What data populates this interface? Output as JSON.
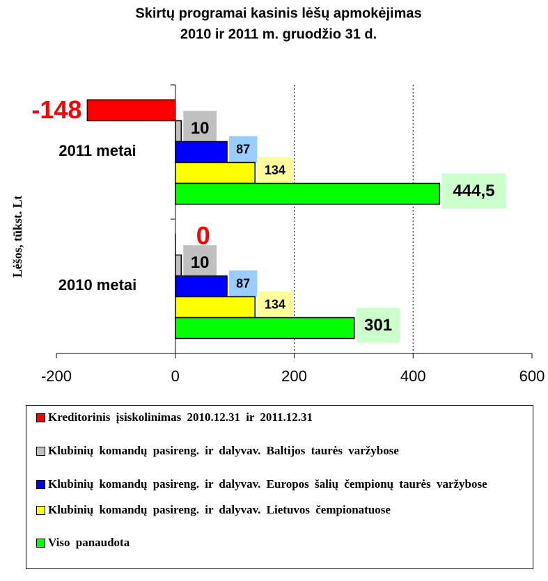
{
  "chart_data": {
    "type": "hbar",
    "title": [
      "Skirtų programai kasinis lėšų apmokėjimas",
      "2010 ir 2011 m. gruodžio 31 d."
    ],
    "ylabel": "Lėšos, tūkst. Lt",
    "categories": [
      "2011 metai",
      "2010 metai"
    ],
    "series": [
      {
        "name": "Kreditorinis įsiskolinimas 2010.12.31 ir 2011.12.31",
        "color": "#ff0000",
        "label_color": "#ff0000",
        "values": [
          -148,
          0
        ]
      },
      {
        "name": "Klubinių komandų pasireng. ir dalyvav. Baltijos taurės varžybose",
        "color": "#c0c0c0",
        "label_background": "#c0c0c0",
        "values": [
          10,
          10
        ]
      },
      {
        "name": "Klubinių komandų pasireng. ir dalyvav. Europos šalių čempionų taurės varžybose",
        "color": "#0000ff",
        "label_background": "#99ccff",
        "values": [
          87,
          87
        ]
      },
      {
        "name": "Klubinių komandų pasireng. ir dalyvav. Lietuvos čempionatuose",
        "color": "#ffff00",
        "label_background": "#ffff99",
        "values": [
          134,
          134
        ]
      },
      {
        "name": "Viso panaudota",
        "color": "#00ff00",
        "label_background": "#ccffcc",
        "values": [
          444.5,
          301
        ],
        "value_labels": [
          "444,5",
          "301"
        ]
      }
    ],
    "xlim": [
      -200,
      600
    ],
    "xticks": [
      -200,
      0,
      200,
      400,
      600
    ],
    "grid": true
  }
}
